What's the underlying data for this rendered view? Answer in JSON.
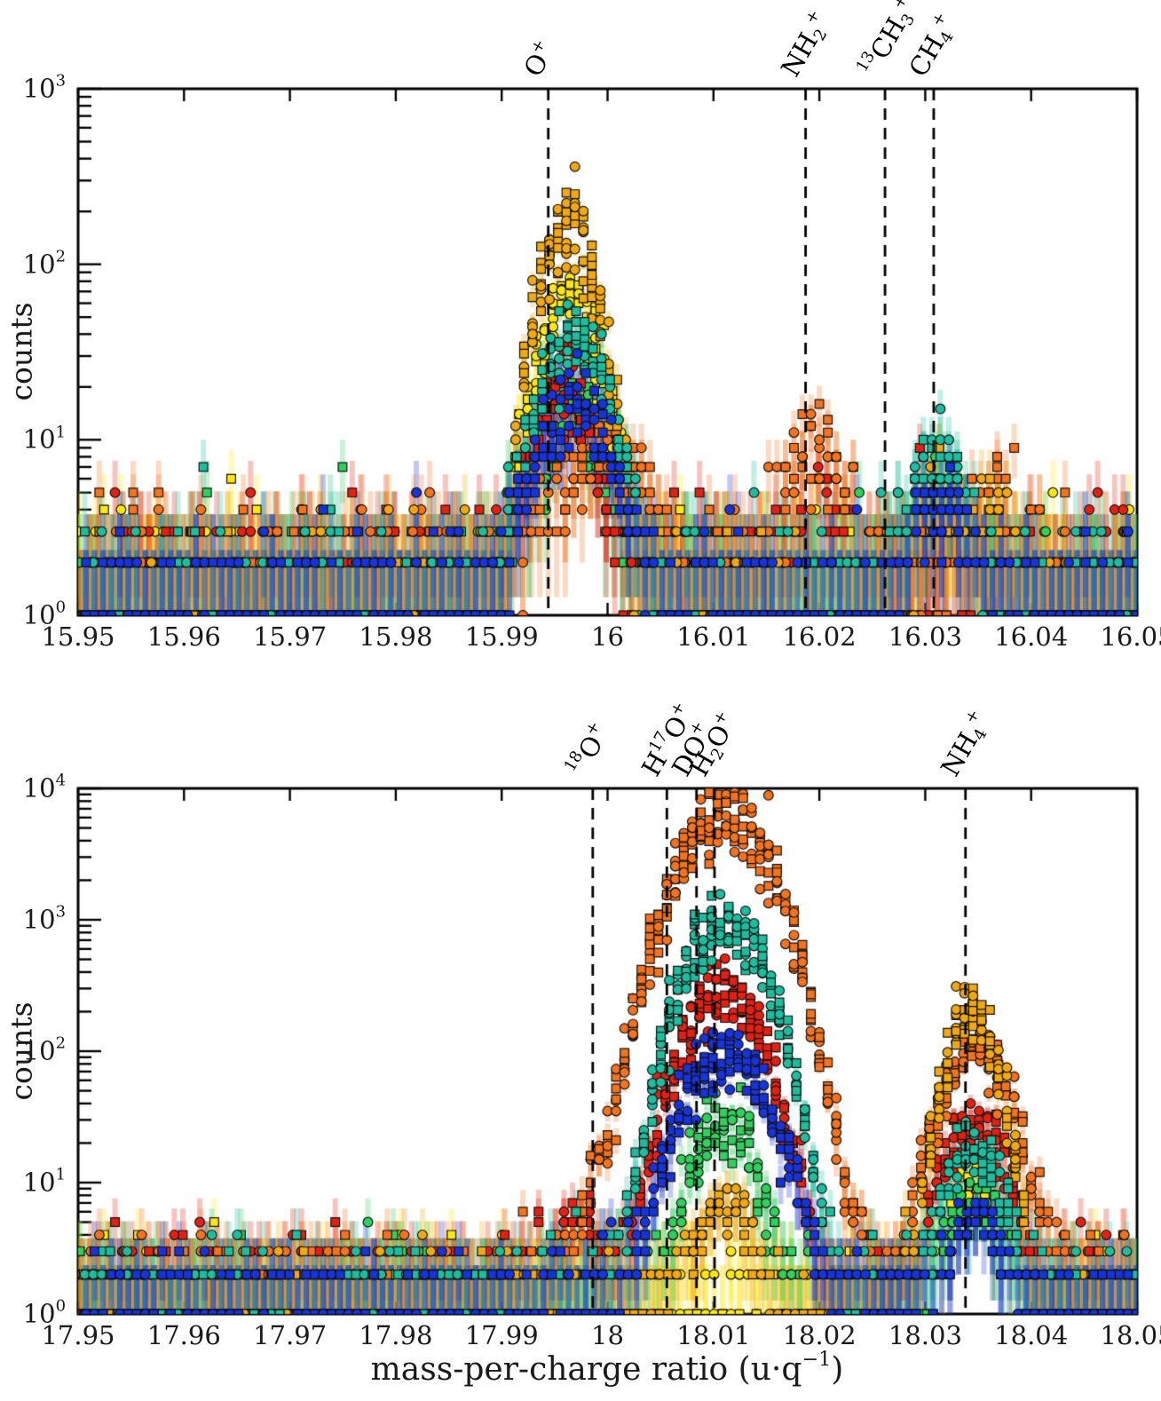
{
  "figure": {
    "ylabel": "counts",
    "xlabel": {
      "pre": "mass-per-charge ratio (u·q",
      "sup": "−1",
      "post": ")"
    }
  },
  "chart_data": [
    {
      "type": "scatter",
      "panel": "top",
      "title": "",
      "xlabel": "",
      "ylabel": "counts",
      "x_axis": "mass-per-charge ratio (u·q⁻¹)",
      "xlim": [
        15.95,
        16.05
      ],
      "y_scale": "log",
      "ylim": [
        1,
        1000
      ],
      "ylog_exp_range": [
        0,
        3
      ],
      "xticks": [
        "15.95",
        "15.96",
        "15.97",
        "15.98",
        "15.99",
        "16",
        "16.01",
        "16.02",
        "16.03",
        "16.04",
        "16.05"
      ],
      "xtick_values": [
        15.95,
        15.96,
        15.97,
        15.98,
        15.99,
        16.0,
        16.01,
        16.02,
        16.03,
        16.04,
        16.05
      ],
      "ytick_exponents": [
        0,
        1,
        2,
        3
      ],
      "grid": false,
      "legend": "none",
      "bin_width": 0.0008,
      "species_lines": [
        {
          "mass": 15.9944,
          "line_style": "dashed",
          "tokens": [
            [
              "n",
              "O"
            ],
            [
              "sup",
              "+"
            ]
          ]
        },
        {
          "mass": 16.0187,
          "line_style": "dashed",
          "tokens": [
            [
              "n",
              "NH"
            ],
            [
              "sub",
              "2"
            ],
            [
              "sup",
              "+"
            ]
          ]
        },
        {
          "mass": 16.0262,
          "line_style": "dashed",
          "tokens": [
            [
              "sup",
              "13"
            ],
            [
              "n",
              "CH"
            ],
            [
              "sub",
              "3"
            ],
            [
              "sup",
              "+"
            ]
          ]
        },
        {
          "mass": 16.0308,
          "line_style": "dashed",
          "tokens": [
            [
              "n",
              "CH"
            ],
            [
              "sub",
              "4"
            ],
            [
              "sup",
              "+"
            ]
          ]
        }
      ],
      "series": [
        {
          "name": "yellow",
          "color": "#FFE80A",
          "markers": "circle+square",
          "background_counts": 1.5,
          "peaks": [
            {
              "center": 15.9965,
              "amplitude": 62,
              "sigma": 0.0022
            },
            {
              "center": 16.031,
              "amplitude": 2.2,
              "sigma": 0.0016
            }
          ]
        },
        {
          "name": "green",
          "color": "#2FD05C",
          "markers": "circle+square",
          "background_counts": 1.45,
          "peaks": [
            {
              "center": 15.9966,
              "amplitude": 15,
              "sigma": 0.0021
            },
            {
              "center": 16.0313,
              "amplitude": 3,
              "sigma": 0.0018
            }
          ]
        },
        {
          "name": "red",
          "color": "#E52013",
          "markers": "circle+square",
          "background_counts": 1.85,
          "peaks": [
            {
              "center": 15.9959,
              "amplitude": 17,
              "sigma": 0.0021
            },
            {
              "center": 16.0195,
              "amplitude": 2.2,
              "sigma": 0.002
            }
          ]
        },
        {
          "name": "orange",
          "color": "#F4731C",
          "markers": "circle+square",
          "background_counts": 1.95,
          "peaks": [
            {
              "center": 16.0003,
              "amplitude": 6,
              "sigma": 0.0032
            },
            {
              "center": 16.0196,
              "amplitude": 6.5,
              "sigma": 0.0022
            },
            {
              "center": 16.0368,
              "amplitude": 2.6,
              "sigma": 0.0018
            }
          ]
        },
        {
          "name": "gold",
          "color": "#F2A90E",
          "markers": "circle+square",
          "background_counts": 1.4,
          "peaks": [
            {
              "center": 15.9962,
              "amplitude": 160,
              "sigma": 0.002
            },
            {
              "center": 16.0309,
              "amplitude": 3.6,
              "sigma": 0.0016
            },
            {
              "center": 16.0366,
              "amplitude": 2.2,
              "sigma": 0.0015
            }
          ]
        },
        {
          "name": "teal",
          "color": "#1BBF9F",
          "markers": "circle+square",
          "background_counts": 1.5,
          "peaks": [
            {
              "center": 15.9968,
              "amplitude": 40,
              "sigma": 0.0025
            },
            {
              "center": 16.0312,
              "amplitude": 6,
              "sigma": 0.002
            }
          ]
        },
        {
          "name": "blue",
          "color": "#1733DC",
          "markers": "circle+square",
          "background_counts": 1.35,
          "peaks": [
            {
              "center": 15.9968,
              "amplitude": 15,
              "sigma": 0.0028
            },
            {
              "center": 16.0313,
              "amplitude": 3,
              "sigma": 0.0018
            }
          ]
        }
      ]
    },
    {
      "type": "scatter",
      "panel": "bottom",
      "title": "",
      "xlabel": "mass-per-charge ratio (u·q⁻¹)",
      "ylabel": "counts",
      "xlim": [
        17.95,
        18.05
      ],
      "y_scale": "log",
      "ylim": [
        1,
        10000
      ],
      "ylog_exp_range": [
        0,
        4
      ],
      "xticks": [
        "17.95",
        "17.96",
        "17.97",
        "17.98",
        "17.99",
        "18",
        "18.01",
        "18.02",
        "18.03",
        "18.04",
        "18.05"
      ],
      "xtick_values": [
        17.95,
        17.96,
        17.97,
        17.98,
        17.99,
        18.0,
        18.01,
        18.02,
        18.03,
        18.04,
        18.05
      ],
      "ytick_exponents": [
        0,
        1,
        2,
        3,
        4
      ],
      "grid": false,
      "legend": "none",
      "bin_width": 0.0008,
      "species_lines": [
        {
          "mass": 17.9986,
          "line_style": "dashed",
          "tokens": [
            [
              "sup",
              "18"
            ],
            [
              "n",
              "O"
            ],
            [
              "sup",
              "+"
            ]
          ]
        },
        {
          "mass": 18.0056,
          "line_style": "dashed",
          "tokens": [
            [
              "n",
              "H"
            ],
            [
              "sup",
              "17"
            ],
            [
              "n",
              "O"
            ],
            [
              "sup",
              "+"
            ]
          ]
        },
        {
          "mass": 18.0084,
          "line_style": "dashed",
          "tokens": [
            [
              "n",
              "DO"
            ],
            [
              "sup",
              "+"
            ]
          ]
        },
        {
          "mass": 18.0101,
          "line_style": "dashed",
          "tokens": [
            [
              "n",
              "H"
            ],
            [
              "sub",
              "2"
            ],
            [
              "n",
              "O"
            ],
            [
              "sup",
              "+"
            ]
          ]
        },
        {
          "mass": 18.0338,
          "line_style": "dashed",
          "tokens": [
            [
              "n",
              "NH"
            ],
            [
              "sub",
              "4"
            ],
            [
              "sup",
              "+"
            ]
          ]
        }
      ],
      "series": [
        {
          "name": "yellow",
          "color": "#FFE80A",
          "markers": "circle+square",
          "background_counts": 1.5,
          "peaks": [
            {
              "center": 18.0345,
              "amplitude": 7,
              "sigma": 0.002
            }
          ]
        },
        {
          "name": "green",
          "color": "#2FD05C",
          "markers": "circle+square",
          "background_counts": 1.45,
          "peaks": [
            {
              "center": 18.011,
              "amplitude": 28,
              "sigma": 0.0022
            },
            {
              "center": 18.0345,
              "amplitude": 6,
              "sigma": 0.002
            }
          ]
        },
        {
          "name": "red",
          "color": "#E52013",
          "markers": "circle+square",
          "background_counts": 1.85,
          "peaks": [
            {
              "center": 18.0108,
              "amplitude": 280,
              "sigma": 0.0028
            },
            {
              "center": 18.0346,
              "amplitude": 26,
              "sigma": 0.0022
            },
            {
              "center": 17.9968,
              "amplitude": 2.5,
              "sigma": 0.003
            }
          ]
        },
        {
          "name": "orange",
          "color": "#F4731C",
          "markers": "circle+square",
          "background_counts": 1.95,
          "peaks": [
            {
              "center": 18.011,
              "amplitude": 6000,
              "sigma": 0.0032
            },
            {
              "center": 18.0348,
              "amplitude": 100,
              "sigma": 0.0024
            },
            {
              "center": 17.999,
              "amplitude": 5,
              "sigma": 0.0016
            }
          ]
        },
        {
          "name": "gold",
          "color": "#F2A90E",
          "markers": "circle+square",
          "background_counts": 1.4,
          "peaks": [
            {
              "center": 18.0344,
              "amplitude": 200,
              "sigma": 0.0018
            },
            {
              "center": 18.011,
              "amplitude": 6,
              "sigma": 0.002
            }
          ]
        },
        {
          "name": "teal",
          "color": "#1BBF9F",
          "markers": "circle+square",
          "background_counts": 1.5,
          "peaks": [
            {
              "center": 18.0111,
              "amplitude": 950,
              "sigma": 0.0028
            },
            {
              "center": 18.0346,
              "amplitude": 18,
              "sigma": 0.002
            }
          ]
        },
        {
          "name": "blue",
          "color": "#1733DC",
          "markers": "circle+square",
          "background_counts": 1.35,
          "peaks": [
            {
              "center": 18.0112,
              "amplitude": 90,
              "sigma": 0.003
            },
            {
              "center": 18.0347,
              "amplitude": 4,
              "sigma": 0.002
            }
          ]
        }
      ]
    }
  ]
}
